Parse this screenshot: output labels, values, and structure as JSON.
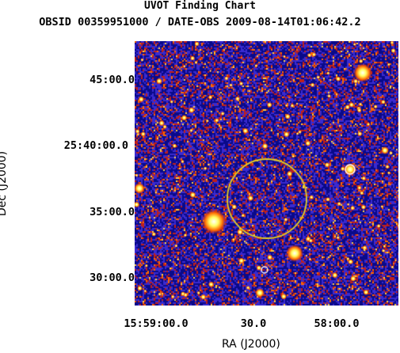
{
  "header": {
    "title": "UVOT Finding Chart",
    "subtitle": "OBSID 00359951000 / DATE-OBS 2009-08-14T01:06:42.2"
  },
  "axes": {
    "xlabel": "RA (J2000)",
    "ylabel": "Dec (J2000)",
    "x_ticks": [
      "15:59:00.0",
      "30.0",
      "58:00.0"
    ],
    "y_ticks": [
      "45:00.0",
      "25:40:00.0",
      "35:00.0",
      "30:00.0"
    ]
  },
  "image": {
    "colormap": [
      "#0a0a8a",
      "#3b2ad0",
      "#c0201a",
      "#ff6a00",
      "#ffd040",
      "#ffffff"
    ],
    "background": "#2222b8"
  },
  "marker": {
    "shape": "circle",
    "color": "#e8d020"
  }
}
